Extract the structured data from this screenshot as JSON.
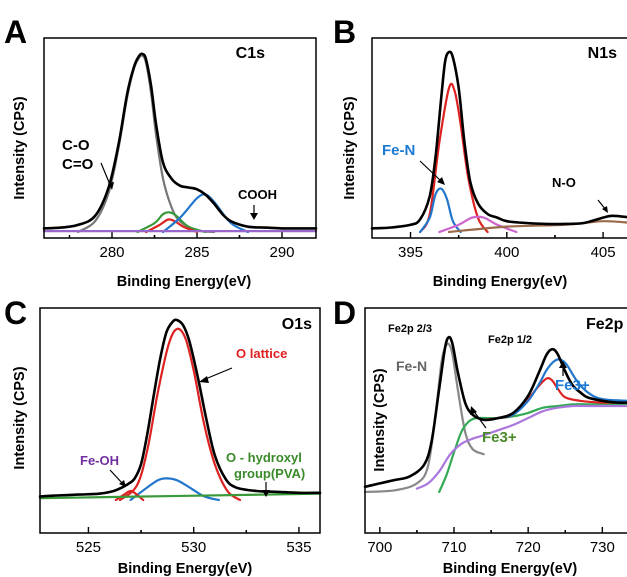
{
  "chart_data": [
    {
      "type": "line",
      "panel_label": "A",
      "title": "C1s",
      "xlabel": "Binding Energy(eV)",
      "ylabel": "Intensity (CPS)",
      "xlim": [
        276,
        292
      ],
      "ylim": [
        0,
        1.0
      ],
      "xticks": [
        280,
        285,
        290
      ],
      "grid": false,
      "series": [
        {
          "color": "#000000",
          "x": [
            276,
            277,
            278,
            279,
            279.8,
            280.4,
            280.9,
            281.3,
            281.6,
            281.8,
            282.0,
            282.3,
            282.6,
            283.0,
            283.5,
            284.0,
            284.5,
            285.0,
            285.5,
            286.0,
            286.5,
            287.0,
            288.0,
            289.0,
            290.0,
            291.0,
            292.0
          ],
          "y": [
            0.02,
            0.025,
            0.04,
            0.09,
            0.25,
            0.5,
            0.78,
            0.93,
            0.99,
            1.0,
            0.97,
            0.82,
            0.6,
            0.39,
            0.3,
            0.26,
            0.25,
            0.24,
            0.21,
            0.16,
            0.1,
            0.06,
            0.03,
            0.025,
            0.02,
            0.02,
            0.02
          ]
        },
        {
          "color": "#777777",
          "x": [
            278,
            279,
            279.8,
            280.4,
            280.9,
            281.3,
            281.6,
            281.8,
            282.0,
            282.3,
            282.6,
            283.0,
            283.5,
            284.0,
            285.0,
            286.0
          ],
          "y": [
            0.0,
            0.06,
            0.22,
            0.48,
            0.76,
            0.92,
            0.98,
            0.99,
            0.95,
            0.78,
            0.54,
            0.3,
            0.14,
            0.06,
            0.01,
            0.0
          ]
        },
        {
          "color": "#3a9a3a",
          "x": [
            281.5,
            282.5,
            283.0,
            283.4,
            283.8,
            284.5,
            285.5
          ],
          "y": [
            0.0,
            0.05,
            0.1,
            0.11,
            0.09,
            0.03,
            0.0
          ]
        },
        {
          "color": "#dd2222",
          "x": [
            282.0,
            282.8,
            283.3,
            283.7,
            284.2,
            285.0
          ],
          "y": [
            0.0,
            0.04,
            0.07,
            0.06,
            0.03,
            0.0
          ]
        },
        {
          "color": "#2277cc",
          "x": [
            283.0,
            284.0,
            285.0,
            285.5,
            286.0,
            287.0,
            288.0
          ],
          "y": [
            0.0,
            0.08,
            0.19,
            0.21,
            0.17,
            0.05,
            0.0
          ]
        },
        {
          "color": "#9966cc",
          "x": [
            276,
            292
          ],
          "y": [
            0.005,
            0.005
          ]
        }
      ],
      "annotations": [
        {
          "text": "C-O",
          "color": "#000000"
        },
        {
          "text": "C=O",
          "color": "#000000"
        },
        {
          "text": "COOH",
          "color": "#000000"
        }
      ]
    },
    {
      "type": "line",
      "panel_label": "B",
      "title": "N1s",
      "xlabel": "Binding Energy(eV)",
      "ylabel": "Intensity (CPS)",
      "xlim": [
        393,
        406.5
      ],
      "ylim": [
        0,
        1.0
      ],
      "xticks": [
        395,
        400,
        405
      ],
      "grid": false,
      "series": [
        {
          "color": "#000000",
          "x": [
            393,
            394,
            395,
            395.5,
            396,
            396.3,
            396.6,
            396.8,
            397.0,
            397.2,
            397.5,
            397.8,
            398.1,
            398.5,
            399,
            399.5,
            400,
            401,
            402,
            403,
            404,
            405,
            405.5,
            406.5
          ],
          "y": [
            0.02,
            0.025,
            0.04,
            0.07,
            0.2,
            0.42,
            0.75,
            0.95,
            1.0,
            0.97,
            0.8,
            0.5,
            0.28,
            0.16,
            0.1,
            0.08,
            0.06,
            0.05,
            0.045,
            0.045,
            0.05,
            0.08,
            0.09,
            0.08
          ]
        },
        {
          "color": "#dd2222",
          "x": [
            395.5,
            396,
            396.5,
            397.0,
            397.3,
            397.6,
            398.0,
            398.5,
            399.0
          ],
          "y": [
            0.0,
            0.1,
            0.5,
            0.8,
            0.78,
            0.6,
            0.3,
            0.08,
            0.0
          ]
        },
        {
          "color": "#2277cc",
          "x": [
            395.5,
            396.0,
            396.3,
            396.6,
            396.9,
            397.2,
            397.6
          ],
          "y": [
            0.0,
            0.08,
            0.21,
            0.24,
            0.18,
            0.06,
            0.0
          ]
        },
        {
          "color": "#cc66cc",
          "x": [
            396.5,
            397.5,
            398.2,
            398.8,
            399.5,
            400.5
          ],
          "y": [
            0.0,
            0.04,
            0.08,
            0.08,
            0.04,
            0.0
          ]
        },
        {
          "color": "#9a6a4a",
          "x": [
            397,
            400,
            403,
            405,
            406.5
          ],
          "y": [
            0.0,
            0.03,
            0.04,
            0.06,
            0.05
          ]
        }
      ],
      "annotations": [
        {
          "text": "Fe-N",
          "color": "#1a7ad4"
        },
        {
          "text": "N-O",
          "color": "#000000"
        }
      ]
    },
    {
      "type": "line",
      "panel_label": "C",
      "title": "O1s",
      "xlabel": "Binding Energy(eV)",
      "ylabel": "Intensity (CPS)",
      "xlim": [
        522.7,
        536
      ],
      "ylim": [
        0,
        1.0
      ],
      "xticks": [
        525,
        530,
        535
      ],
      "grid": false,
      "series": [
        {
          "color": "#000000",
          "x": [
            522.7,
            523.5,
            524.5,
            525.5,
            526.2,
            526.6,
            526.9,
            527.2,
            527.5,
            527.8,
            528.1,
            528.4,
            528.7,
            529.0,
            529.2,
            529.5,
            529.8,
            530.2,
            530.6,
            531.0,
            531.5,
            532.0,
            533.0,
            534.0,
            535.0,
            536.0
          ],
          "y": [
            0.02,
            0.025,
            0.03,
            0.035,
            0.05,
            0.07,
            0.09,
            0.12,
            0.2,
            0.37,
            0.58,
            0.78,
            0.93,
            0.99,
            1.0,
            0.97,
            0.88,
            0.68,
            0.45,
            0.25,
            0.12,
            0.07,
            0.05,
            0.045,
            0.04,
            0.04
          ]
        },
        {
          "color": "#dd2222",
          "x": [
            526.5,
            527.3,
            527.8,
            528.3,
            528.8,
            529.2,
            529.6,
            530.0,
            530.5,
            531.0,
            531.6,
            532.2
          ],
          "y": [
            0.0,
            0.08,
            0.28,
            0.6,
            0.86,
            0.95,
            0.9,
            0.72,
            0.42,
            0.2,
            0.05,
            0.0
          ]
        },
        {
          "color": "#2277cc",
          "x": [
            527.0,
            527.8,
            528.3,
            528.7,
            529.2,
            529.8,
            530.5,
            531.2
          ],
          "y": [
            0.0,
            0.07,
            0.11,
            0.12,
            0.11,
            0.07,
            0.02,
            0.0
          ]
        },
        {
          "color": "#dd2222",
          "x": [
            526.3,
            526.7,
            527.0,
            527.3,
            527.6
          ],
          "y": [
            0.0,
            0.03,
            0.05,
            0.03,
            0.0
          ]
        },
        {
          "color": "#3a9a3a",
          "x": [
            522.7,
            536.0
          ],
          "y": [
            0.01,
            0.035
          ]
        }
      ],
      "annotations": [
        {
          "text": "O lattice",
          "color": "#e02020"
        },
        {
          "text": "Fe-OH",
          "color": "#7030a0"
        },
        {
          "text": "O - hydroxyl",
          "color": "#3a8a2a"
        },
        {
          "text": "group(PVA)",
          "color": "#3a8a2a"
        }
      ]
    },
    {
      "type": "line",
      "panel_label": "D",
      "title": "Fe2p",
      "xlabel": "Binding Energy(eV)",
      "ylabel": "Intensity (CPS)",
      "xlim": [
        698,
        734
      ],
      "ylim": [
        0,
        1.0
      ],
      "xticks": [
        700,
        710,
        720,
        730
      ],
      "grid": false,
      "series": [
        {
          "color": "#000000",
          "x": [
            698,
            700,
            702,
            704,
            706,
            707,
            708,
            708.8,
            709.3,
            709.8,
            710.5,
            711.5,
            712.5,
            714,
            716,
            718,
            720,
            721.5,
            722.5,
            723.3,
            724,
            725,
            726,
            727,
            728,
            730,
            732,
            734
          ],
          "y": [
            0.03,
            0.05,
            0.07,
            0.09,
            0.16,
            0.3,
            0.6,
            0.84,
            0.9,
            0.86,
            0.7,
            0.52,
            0.45,
            0.42,
            0.43,
            0.46,
            0.56,
            0.7,
            0.8,
            0.83,
            0.8,
            0.7,
            0.62,
            0.58,
            0.55,
            0.53,
            0.52,
            0.52
          ]
        },
        {
          "color": "#888888",
          "x": [
            698,
            702,
            705,
            706.5,
            707.5,
            708.3,
            708.8,
            709.3,
            709.8,
            710.5,
            711.5,
            712.5,
            714
          ],
          "y": [
            0.0,
            0.01,
            0.05,
            0.15,
            0.45,
            0.75,
            0.84,
            0.86,
            0.8,
            0.6,
            0.35,
            0.25,
            0.22
          ]
        },
        {
          "color": "#33aa55",
          "x": [
            708,
            709,
            710,
            711,
            712,
            713,
            714,
            716,
            718,
            720,
            722,
            724,
            726,
            728,
            730,
            734
          ],
          "y": [
            0.0,
            0.1,
            0.23,
            0.35,
            0.41,
            0.43,
            0.43,
            0.43,
            0.44,
            0.46,
            0.49,
            0.5,
            0.51,
            0.51,
            0.51,
            0.51
          ]
        },
        {
          "color": "#dd2222",
          "x": [
            714,
            716,
            718,
            720,
            721.5,
            722.5,
            723.2,
            724,
            725,
            727,
            730,
            734
          ],
          "y": [
            0.42,
            0.43,
            0.45,
            0.54,
            0.62,
            0.66,
            0.65,
            0.6,
            0.55,
            0.53,
            0.52,
            0.52
          ]
        },
        {
          "color": "#2277cc",
          "x": [
            716,
            718,
            720,
            721.5,
            722.5,
            723.5,
            724.3,
            725.2,
            726.5,
            728,
            730,
            734
          ],
          "y": [
            0.43,
            0.45,
            0.53,
            0.63,
            0.71,
            0.76,
            0.77,
            0.74,
            0.65,
            0.58,
            0.54,
            0.53
          ]
        },
        {
          "color": "#aa77dd",
          "x": [
            705,
            706.5,
            708,
            709.5,
            711,
            712.5,
            714,
            716,
            718,
            720,
            722,
            724,
            726,
            728,
            730,
            734
          ],
          "y": [
            0.02,
            0.05,
            0.12,
            0.22,
            0.28,
            0.31,
            0.33,
            0.36,
            0.39,
            0.43,
            0.47,
            0.49,
            0.5,
            0.5,
            0.5,
            0.5
          ]
        }
      ],
      "annotations": [
        {
          "text": "Fe2p 2/3",
          "color": "#000000"
        },
        {
          "text": "Fe2p 1/2",
          "color": "#000000"
        },
        {
          "text": "Fe-N",
          "color": "#666666"
        },
        {
          "text": "Fe3+",
          "color": "#4a8a2a"
        },
        {
          "text": "Fe3+",
          "color": "#1a7ad4"
        }
      ]
    }
  ]
}
